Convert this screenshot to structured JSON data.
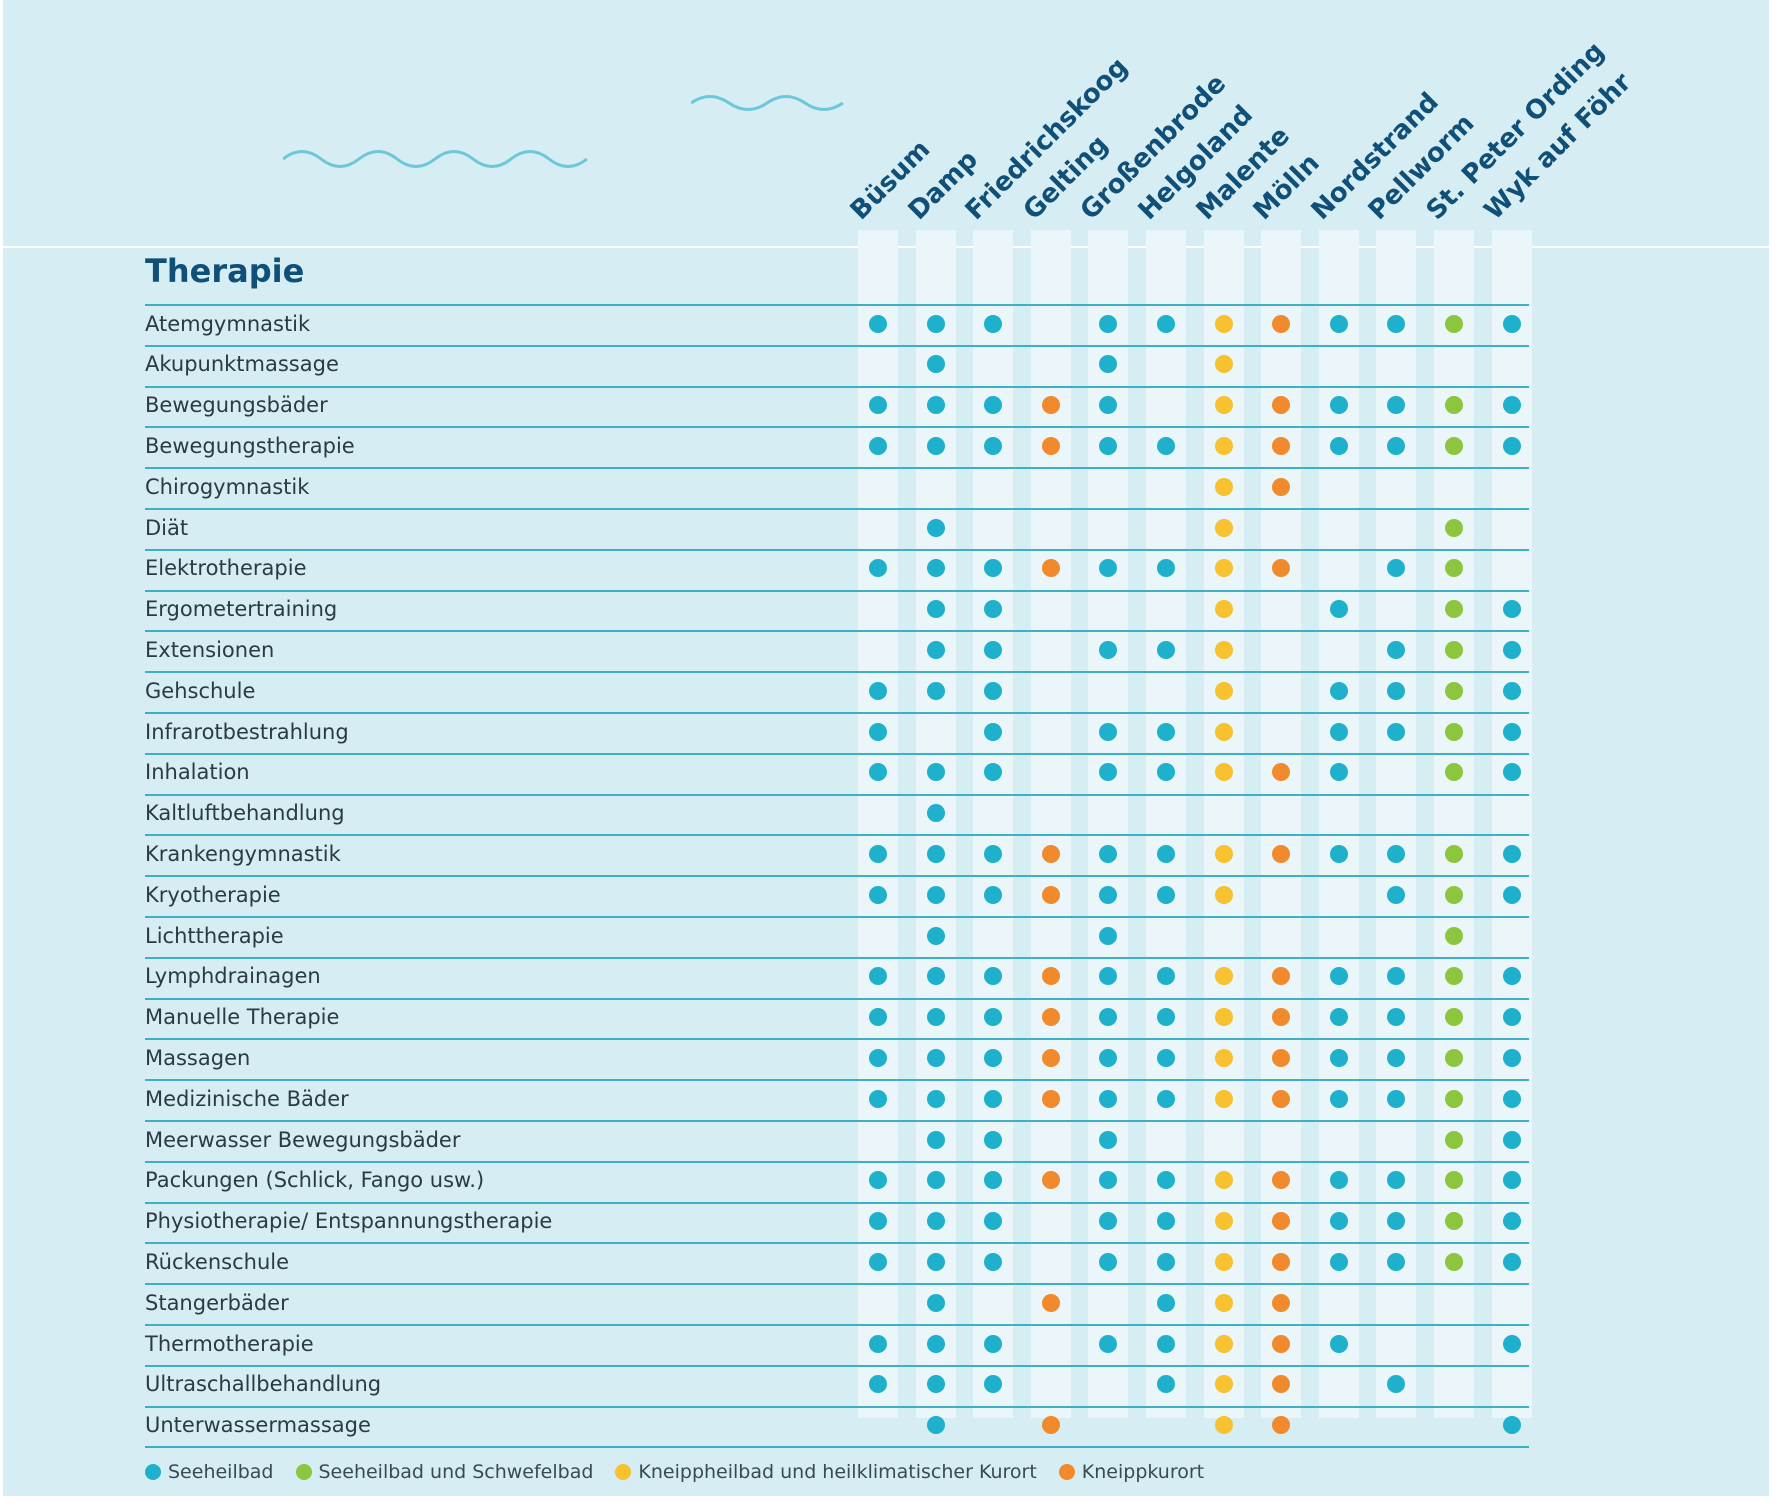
{
  "section_title": "Therapie",
  "colors": {
    "seeheilbad": "#1fb0cb",
    "seeheilbad_schwefelbad": "#8cc63f",
    "kneippheilbad_heilklimatisch": "#f8c130",
    "kneippkurort": "#f08a2c"
  },
  "places": [
    "Büsum",
    "Damp",
    "Friedrichskoog",
    "Gelting",
    "Großenbrode",
    "Helgoland",
    "Malente",
    "Mölln",
    "Nordstrand",
    "Pellworm",
    "St. Peter Ording",
    "Wyk auf Föhr"
  ],
  "place_types": [
    "seeheilbad",
    "seeheilbad",
    "seeheilbad",
    "kneippkurort",
    "seeheilbad",
    "seeheilbad",
    "kneippheilbad_heilklimatisch",
    "kneippkurort",
    "seeheilbad",
    "seeheilbad",
    "seeheilbad_schwefelbad",
    "seeheilbad"
  ],
  "therapies": [
    {
      "name": "Atemgymnastik",
      "offered": [
        1,
        1,
        1,
        0,
        1,
        1,
        1,
        1,
        1,
        1,
        1,
        1
      ]
    },
    {
      "name": "Akupunktmassage",
      "offered": [
        0,
        1,
        0,
        0,
        1,
        0,
        1,
        0,
        0,
        0,
        0,
        0
      ]
    },
    {
      "name": "Bewegungsbäder",
      "offered": [
        1,
        1,
        1,
        1,
        1,
        0,
        1,
        1,
        1,
        1,
        1,
        1
      ]
    },
    {
      "name": "Bewegungstherapie",
      "offered": [
        1,
        1,
        1,
        1,
        1,
        1,
        1,
        1,
        1,
        1,
        1,
        1
      ]
    },
    {
      "name": "Chirogymnastik",
      "offered": [
        0,
        0,
        0,
        0,
        0,
        0,
        1,
        1,
        0,
        0,
        0,
        0
      ]
    },
    {
      "name": "Diät",
      "offered": [
        0,
        1,
        0,
        0,
        0,
        0,
        1,
        0,
        0,
        0,
        1,
        0
      ]
    },
    {
      "name": "Elektrotherapie",
      "offered": [
        1,
        1,
        1,
        1,
        1,
        1,
        1,
        1,
        0,
        1,
        1,
        0
      ]
    },
    {
      "name": "Ergometertraining",
      "offered": [
        0,
        1,
        1,
        0,
        0,
        0,
        1,
        0,
        1,
        0,
        1,
        1
      ]
    },
    {
      "name": "Extensionen",
      "offered": [
        0,
        1,
        1,
        0,
        1,
        1,
        1,
        0,
        0,
        1,
        1,
        1
      ]
    },
    {
      "name": "Gehschule",
      "offered": [
        1,
        1,
        1,
        0,
        0,
        0,
        1,
        0,
        1,
        1,
        1,
        1
      ]
    },
    {
      "name": "Infrarotbestrahlung",
      "offered": [
        1,
        0,
        1,
        0,
        1,
        1,
        1,
        0,
        1,
        1,
        1,
        1
      ]
    },
    {
      "name": "Inhalation",
      "offered": [
        1,
        1,
        1,
        0,
        1,
        1,
        1,
        1,
        1,
        0,
        1,
        1
      ]
    },
    {
      "name": "Kaltluftbehandlung",
      "offered": [
        0,
        1,
        0,
        0,
        0,
        0,
        0,
        0,
        0,
        0,
        0,
        0
      ]
    },
    {
      "name": "Krankengymnastik",
      "offered": [
        1,
        1,
        1,
        1,
        1,
        1,
        1,
        1,
        1,
        1,
        1,
        1
      ]
    },
    {
      "name": "Kryotherapie",
      "offered": [
        1,
        1,
        1,
        1,
        1,
        1,
        1,
        0,
        0,
        1,
        1,
        1
      ]
    },
    {
      "name": "Lichttherapie",
      "offered": [
        0,
        1,
        0,
        0,
        1,
        0,
        0,
        0,
        0,
        0,
        1,
        0
      ]
    },
    {
      "name": "Lymphdrainagen",
      "offered": [
        1,
        1,
        1,
        1,
        1,
        1,
        1,
        1,
        1,
        1,
        1,
        1
      ]
    },
    {
      "name": "Manuelle Therapie",
      "offered": [
        1,
        1,
        1,
        1,
        1,
        1,
        1,
        1,
        1,
        1,
        1,
        1
      ]
    },
    {
      "name": "Massagen",
      "offered": [
        1,
        1,
        1,
        1,
        1,
        1,
        1,
        1,
        1,
        1,
        1,
        1
      ]
    },
    {
      "name": "Medizinische Bäder",
      "offered": [
        1,
        1,
        1,
        1,
        1,
        1,
        1,
        1,
        1,
        1,
        1,
        1
      ]
    },
    {
      "name": "Meerwasser Bewegungsbäder",
      "offered": [
        0,
        1,
        1,
        0,
        1,
        0,
        0,
        0,
        0,
        0,
        1,
        1
      ]
    },
    {
      "name": "Packungen (Schlick, Fango usw.)",
      "offered": [
        1,
        1,
        1,
        1,
        1,
        1,
        1,
        1,
        1,
        1,
        1,
        1
      ]
    },
    {
      "name": "Physiotherapie/ Entspannungstherapie",
      "offered": [
        1,
        1,
        1,
        0,
        1,
        1,
        1,
        1,
        1,
        1,
        1,
        1
      ]
    },
    {
      "name": "Rückenschule",
      "offered": [
        1,
        1,
        1,
        0,
        1,
        1,
        1,
        1,
        1,
        1,
        1,
        1
      ]
    },
    {
      "name": "Stangerbäder",
      "offered": [
        0,
        1,
        0,
        1,
        0,
        1,
        1,
        1,
        0,
        0,
        0,
        0
      ]
    },
    {
      "name": "Thermotherapie",
      "offered": [
        1,
        1,
        1,
        0,
        1,
        1,
        1,
        1,
        1,
        0,
        0,
        1
      ]
    },
    {
      "name": "Ultraschallbehandlung",
      "offered": [
        1,
        1,
        1,
        0,
        0,
        1,
        1,
        1,
        0,
        1,
        0,
        0
      ]
    },
    {
      "name": "Unterwassermassage",
      "offered": [
        0,
        1,
        0,
        1,
        0,
        0,
        1,
        1,
        0,
        0,
        0,
        1
      ]
    }
  ],
  "legend": [
    {
      "label": "Seeheilbad",
      "type": "seeheilbad"
    },
    {
      "label": "Seeheilbad und Schwefelbad",
      "type": "seeheilbad_schwefelbad"
    },
    {
      "label": "Kneippheilbad und heilklimatischer Kurort",
      "type": "kneippheilbad_heilklimatisch"
    },
    {
      "label": "Kneippkurort",
      "type": "kneippkurort"
    }
  ]
}
